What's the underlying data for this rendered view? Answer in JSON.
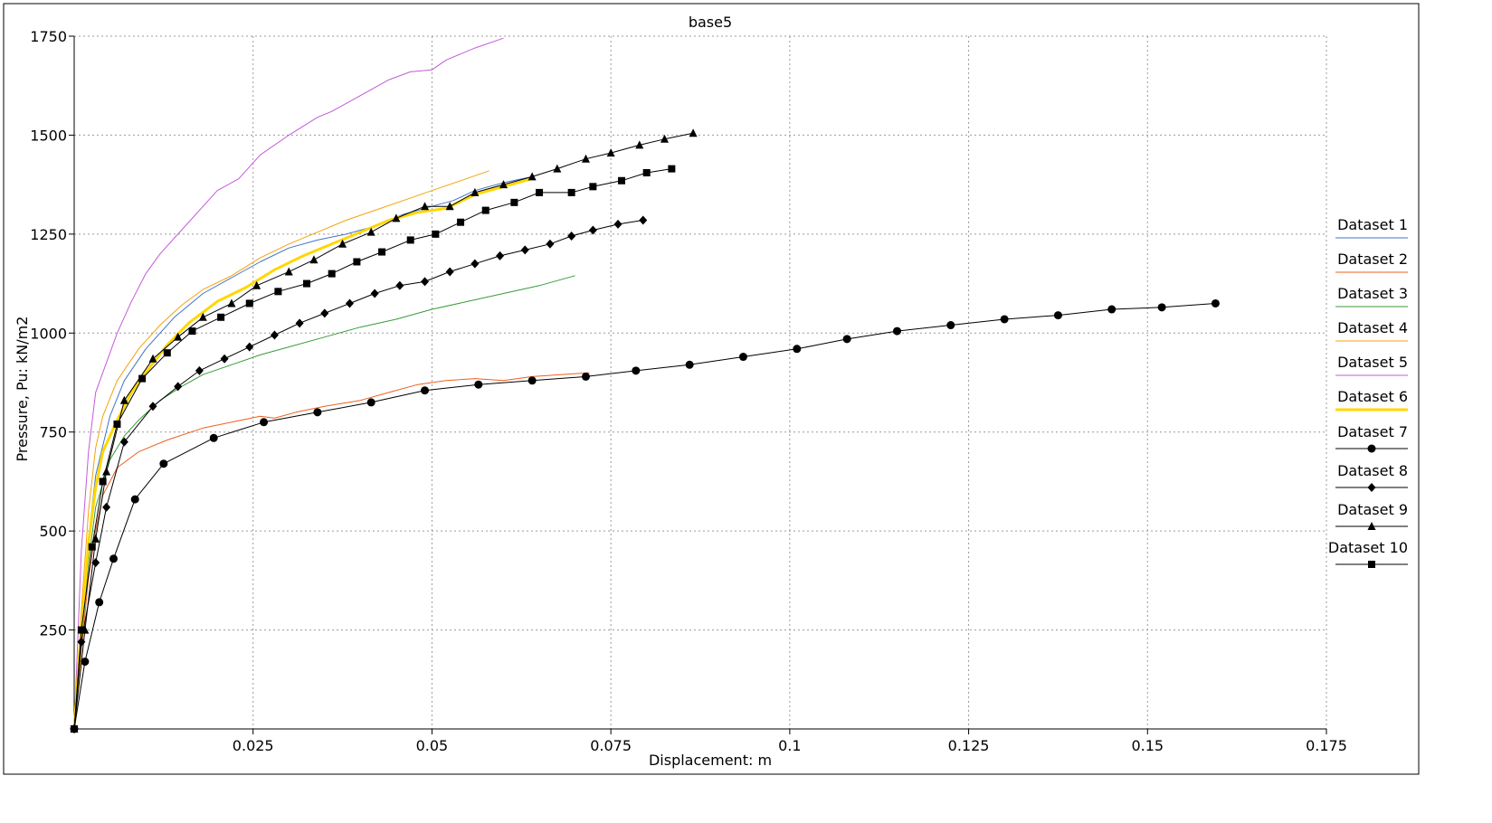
{
  "chart_data": {
    "type": "line",
    "title": "base5",
    "xlabel": "Displacement: m",
    "ylabel": "Pressure, Pu: kN/m2",
    "xlim": [
      0,
      0.175
    ],
    "ylim": [
      0,
      1750
    ],
    "xticks": [
      0.025,
      0.05,
      0.075,
      0.1,
      0.125,
      0.15,
      0.175
    ],
    "xtick_labels": [
      "0.025",
      "0.05",
      "0.075",
      "0.1",
      "0.125",
      "0.15",
      "0.175"
    ],
    "yticks": [
      250,
      500,
      750,
      1000,
      1250,
      1500,
      1750
    ],
    "ytick_labels": [
      "250",
      "500",
      "750",
      "1000",
      "1250",
      "1500",
      "1750"
    ],
    "grid": true,
    "legend_position": "right",
    "series": [
      {
        "name": "Dataset 1",
        "color": "#4472c4",
        "width": 1,
        "marker": "none",
        "x": [
          0,
          0.001,
          0.002,
          0.003,
          0.005,
          0.007,
          0.01,
          0.014,
          0.018,
          0.022,
          0.026,
          0.03,
          0.034,
          0.038,
          0.042,
          0.046,
          0.05,
          0.053,
          0.056,
          0.06,
          0.064
        ],
        "y": [
          0,
          250,
          480,
          640,
          790,
          880,
          960,
          1040,
          1100,
          1140,
          1180,
          1215,
          1235,
          1250,
          1270,
          1300,
          1320,
          1335,
          1360,
          1380,
          1395
        ]
      },
      {
        "name": "Dataset 2",
        "color": "#ed5f1f",
        "width": 1,
        "marker": "none",
        "x": [
          0,
          0.001,
          0.002,
          0.003,
          0.004,
          0.006,
          0.009,
          0.013,
          0.018,
          0.022,
          0.026,
          0.028,
          0.031,
          0.035,
          0.04,
          0.044,
          0.048,
          0.052,
          0.056,
          0.06,
          0.064,
          0.068,
          0.072
        ],
        "y": [
          0,
          200,
          380,
          500,
          590,
          660,
          700,
          730,
          760,
          775,
          790,
          785,
          800,
          815,
          830,
          850,
          870,
          880,
          885,
          880,
          890,
          895,
          900
        ]
      },
      {
        "name": "Dataset 3",
        "color": "#3a9a3a",
        "width": 1,
        "marker": "none",
        "x": [
          0,
          0.001,
          0.002,
          0.003,
          0.005,
          0.007,
          0.009,
          0.012,
          0.015,
          0.018,
          0.022,
          0.026,
          0.03,
          0.035,
          0.04,
          0.045,
          0.05,
          0.055,
          0.06,
          0.065,
          0.07
        ],
        "y": [
          0,
          220,
          420,
          560,
          680,
          740,
          780,
          830,
          865,
          895,
          920,
          945,
          965,
          990,
          1015,
          1035,
          1060,
          1080,
          1100,
          1120,
          1145
        ]
      },
      {
        "name": "Dataset 4",
        "color": "#f5a20a",
        "width": 1,
        "marker": "none",
        "x": [
          0,
          0.001,
          0.002,
          0.003,
          0.004,
          0.006,
          0.009,
          0.012,
          0.015,
          0.018,
          0.022,
          0.026,
          0.03,
          0.034,
          0.038,
          0.042,
          0.046,
          0.05,
          0.054,
          0.058
        ],
        "y": [
          0,
          300,
          550,
          710,
          790,
          880,
          960,
          1020,
          1070,
          1110,
          1145,
          1190,
          1225,
          1255,
          1285,
          1310,
          1335,
          1360,
          1385,
          1410
        ]
      },
      {
        "name": "Dataset 5",
        "color": "#c45ad8",
        "width": 1,
        "marker": "none",
        "x": [
          0,
          0.001,
          0.002,
          0.003,
          0.004,
          0.006,
          0.008,
          0.01,
          0.012,
          0.015,
          0.018,
          0.02,
          0.023,
          0.026,
          0.03,
          0.034,
          0.036,
          0.04,
          0.044,
          0.047,
          0.05,
          0.052,
          0.056,
          0.06
        ],
        "y": [
          0,
          450,
          700,
          850,
          900,
          1000,
          1080,
          1150,
          1200,
          1260,
          1320,
          1360,
          1390,
          1450,
          1500,
          1545,
          1560,
          1600,
          1640,
          1660,
          1665,
          1690,
          1720,
          1745
        ]
      },
      {
        "name": "Dataset 6",
        "color": "#ffd700",
        "width": 3,
        "marker": "none",
        "x": [
          0,
          0.001,
          0.002,
          0.003,
          0.004,
          0.006,
          0.008,
          0.01,
          0.013,
          0.016,
          0.02,
          0.024,
          0.028,
          0.032,
          0.036,
          0.04,
          0.044,
          0.048,
          0.052,
          0.056,
          0.06,
          0.064
        ],
        "y": [
          0,
          250,
          470,
          610,
          700,
          780,
          850,
          900,
          970,
          1025,
          1080,
          1115,
          1160,
          1195,
          1225,
          1255,
          1285,
          1305,
          1315,
          1350,
          1370,
          1390
        ]
      },
      {
        "name": "Dataset 7",
        "color": "#000000",
        "width": 1,
        "marker": "circle",
        "x": [
          0,
          0.0015,
          0.0035,
          0.0055,
          0.0085,
          0.0125,
          0.0195,
          0.0265,
          0.034,
          0.0415,
          0.049,
          0.0565,
          0.064,
          0.0715,
          0.0785,
          0.086,
          0.0935,
          0.101,
          0.108,
          0.115,
          0.1225,
          0.13,
          0.1375,
          0.145,
          0.152,
          0.1595
        ],
        "y": [
          0,
          170,
          320,
          430,
          580,
          670,
          735,
          775,
          800,
          825,
          855,
          870,
          880,
          890,
          905,
          920,
          940,
          960,
          985,
          1005,
          1020,
          1035,
          1045,
          1060,
          1065,
          1075
        ]
      },
      {
        "name": "Dataset 8",
        "color": "#000000",
        "width": 1,
        "marker": "diamond",
        "x": [
          0,
          0.001,
          0.003,
          0.0045,
          0.007,
          0.011,
          0.0145,
          0.0175,
          0.021,
          0.0245,
          0.028,
          0.0315,
          0.035,
          0.0385,
          0.042,
          0.0455,
          0.049,
          0.0525,
          0.056,
          0.0595,
          0.063,
          0.0665,
          0.0695,
          0.0725,
          0.076,
          0.0795
        ],
        "y": [
          0,
          220,
          420,
          560,
          725,
          815,
          865,
          905,
          935,
          965,
          995,
          1025,
          1050,
          1075,
          1100,
          1120,
          1130,
          1155,
          1175,
          1195,
          1210,
          1225,
          1245,
          1260,
          1275,
          1285
        ]
      },
      {
        "name": "Dataset 9",
        "color": "#000000",
        "width": 1,
        "marker": "triangle",
        "x": [
          0,
          0.0015,
          0.003,
          0.0045,
          0.007,
          0.011,
          0.0145,
          0.018,
          0.022,
          0.0255,
          0.03,
          0.0335,
          0.0375,
          0.0415,
          0.045,
          0.049,
          0.0525,
          0.056,
          0.06,
          0.064,
          0.0675,
          0.0715,
          0.075,
          0.079,
          0.0825,
          0.0865
        ],
        "y": [
          0,
          250,
          480,
          650,
          830,
          935,
          990,
          1040,
          1075,
          1120,
          1155,
          1185,
          1225,
          1255,
          1290,
          1320,
          1320,
          1355,
          1375,
          1395,
          1415,
          1440,
          1455,
          1475,
          1490,
          1505
        ]
      },
      {
        "name": "Dataset 10",
        "color": "#000000",
        "width": 1,
        "marker": "square",
        "x": [
          0,
          0.001,
          0.0025,
          0.004,
          0.006,
          0.0095,
          0.013,
          0.0165,
          0.0205,
          0.0245,
          0.0285,
          0.0325,
          0.036,
          0.0395,
          0.043,
          0.047,
          0.0505,
          0.054,
          0.0575,
          0.0615,
          0.065,
          0.0695,
          0.0725,
          0.0765,
          0.08,
          0.0835
        ],
        "y": [
          0,
          250,
          460,
          625,
          770,
          885,
          950,
          1005,
          1040,
          1075,
          1105,
          1125,
          1150,
          1180,
          1205,
          1235,
          1250,
          1280,
          1310,
          1330,
          1355,
          1355,
          1370,
          1385,
          1405,
          1415
        ]
      }
    ]
  }
}
